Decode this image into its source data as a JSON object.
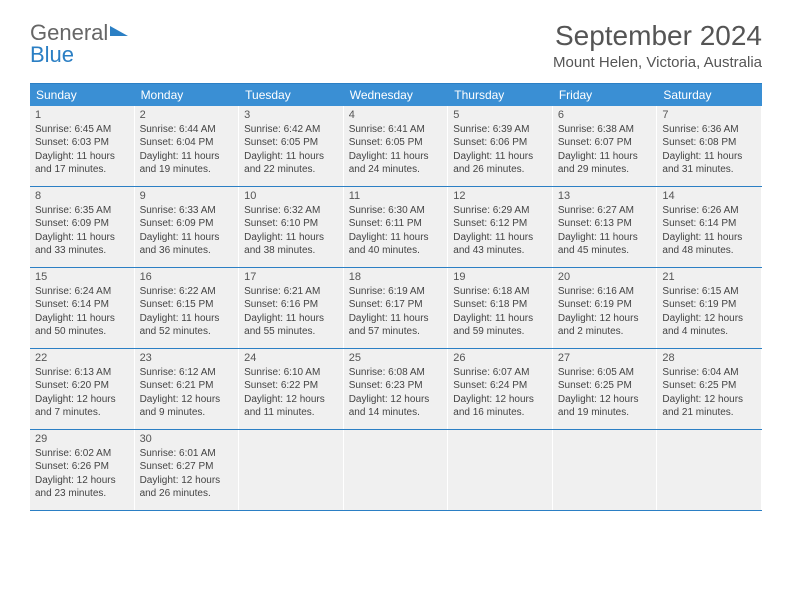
{
  "logo": {
    "general": "General",
    "blue": "Blue"
  },
  "title": "September 2024",
  "location": "Mount Helen, Victoria, Australia",
  "colors": {
    "header_bg": "#3a8fd4",
    "border": "#2b7fc4",
    "cell_bg": "#f0f0f0",
    "text": "#444444",
    "page_bg": "#ffffff"
  },
  "day_names": [
    "Sunday",
    "Monday",
    "Tuesday",
    "Wednesday",
    "Thursday",
    "Friday",
    "Saturday"
  ],
  "weeks": [
    [
      {
        "n": "1",
        "sr": "Sunrise: 6:45 AM",
        "ss": "Sunset: 6:03 PM",
        "d1": "Daylight: 11 hours",
        "d2": "and 17 minutes."
      },
      {
        "n": "2",
        "sr": "Sunrise: 6:44 AM",
        "ss": "Sunset: 6:04 PM",
        "d1": "Daylight: 11 hours",
        "d2": "and 19 minutes."
      },
      {
        "n": "3",
        "sr": "Sunrise: 6:42 AM",
        "ss": "Sunset: 6:05 PM",
        "d1": "Daylight: 11 hours",
        "d2": "and 22 minutes."
      },
      {
        "n": "4",
        "sr": "Sunrise: 6:41 AM",
        "ss": "Sunset: 6:05 PM",
        "d1": "Daylight: 11 hours",
        "d2": "and 24 minutes."
      },
      {
        "n": "5",
        "sr": "Sunrise: 6:39 AM",
        "ss": "Sunset: 6:06 PM",
        "d1": "Daylight: 11 hours",
        "d2": "and 26 minutes."
      },
      {
        "n": "6",
        "sr": "Sunrise: 6:38 AM",
        "ss": "Sunset: 6:07 PM",
        "d1": "Daylight: 11 hours",
        "d2": "and 29 minutes."
      },
      {
        "n": "7",
        "sr": "Sunrise: 6:36 AM",
        "ss": "Sunset: 6:08 PM",
        "d1": "Daylight: 11 hours",
        "d2": "and 31 minutes."
      }
    ],
    [
      {
        "n": "8",
        "sr": "Sunrise: 6:35 AM",
        "ss": "Sunset: 6:09 PM",
        "d1": "Daylight: 11 hours",
        "d2": "and 33 minutes."
      },
      {
        "n": "9",
        "sr": "Sunrise: 6:33 AM",
        "ss": "Sunset: 6:09 PM",
        "d1": "Daylight: 11 hours",
        "d2": "and 36 minutes."
      },
      {
        "n": "10",
        "sr": "Sunrise: 6:32 AM",
        "ss": "Sunset: 6:10 PM",
        "d1": "Daylight: 11 hours",
        "d2": "and 38 minutes."
      },
      {
        "n": "11",
        "sr": "Sunrise: 6:30 AM",
        "ss": "Sunset: 6:11 PM",
        "d1": "Daylight: 11 hours",
        "d2": "and 40 minutes."
      },
      {
        "n": "12",
        "sr": "Sunrise: 6:29 AM",
        "ss": "Sunset: 6:12 PM",
        "d1": "Daylight: 11 hours",
        "d2": "and 43 minutes."
      },
      {
        "n": "13",
        "sr": "Sunrise: 6:27 AM",
        "ss": "Sunset: 6:13 PM",
        "d1": "Daylight: 11 hours",
        "d2": "and 45 minutes."
      },
      {
        "n": "14",
        "sr": "Sunrise: 6:26 AM",
        "ss": "Sunset: 6:14 PM",
        "d1": "Daylight: 11 hours",
        "d2": "and 48 minutes."
      }
    ],
    [
      {
        "n": "15",
        "sr": "Sunrise: 6:24 AM",
        "ss": "Sunset: 6:14 PM",
        "d1": "Daylight: 11 hours",
        "d2": "and 50 minutes."
      },
      {
        "n": "16",
        "sr": "Sunrise: 6:22 AM",
        "ss": "Sunset: 6:15 PM",
        "d1": "Daylight: 11 hours",
        "d2": "and 52 minutes."
      },
      {
        "n": "17",
        "sr": "Sunrise: 6:21 AM",
        "ss": "Sunset: 6:16 PM",
        "d1": "Daylight: 11 hours",
        "d2": "and 55 minutes."
      },
      {
        "n": "18",
        "sr": "Sunrise: 6:19 AM",
        "ss": "Sunset: 6:17 PM",
        "d1": "Daylight: 11 hours",
        "d2": "and 57 minutes."
      },
      {
        "n": "19",
        "sr": "Sunrise: 6:18 AM",
        "ss": "Sunset: 6:18 PM",
        "d1": "Daylight: 11 hours",
        "d2": "and 59 minutes."
      },
      {
        "n": "20",
        "sr": "Sunrise: 6:16 AM",
        "ss": "Sunset: 6:19 PM",
        "d1": "Daylight: 12 hours",
        "d2": "and 2 minutes."
      },
      {
        "n": "21",
        "sr": "Sunrise: 6:15 AM",
        "ss": "Sunset: 6:19 PM",
        "d1": "Daylight: 12 hours",
        "d2": "and 4 minutes."
      }
    ],
    [
      {
        "n": "22",
        "sr": "Sunrise: 6:13 AM",
        "ss": "Sunset: 6:20 PM",
        "d1": "Daylight: 12 hours",
        "d2": "and 7 minutes."
      },
      {
        "n": "23",
        "sr": "Sunrise: 6:12 AM",
        "ss": "Sunset: 6:21 PM",
        "d1": "Daylight: 12 hours",
        "d2": "and 9 minutes."
      },
      {
        "n": "24",
        "sr": "Sunrise: 6:10 AM",
        "ss": "Sunset: 6:22 PM",
        "d1": "Daylight: 12 hours",
        "d2": "and 11 minutes."
      },
      {
        "n": "25",
        "sr": "Sunrise: 6:08 AM",
        "ss": "Sunset: 6:23 PM",
        "d1": "Daylight: 12 hours",
        "d2": "and 14 minutes."
      },
      {
        "n": "26",
        "sr": "Sunrise: 6:07 AM",
        "ss": "Sunset: 6:24 PM",
        "d1": "Daylight: 12 hours",
        "d2": "and 16 minutes."
      },
      {
        "n": "27",
        "sr": "Sunrise: 6:05 AM",
        "ss": "Sunset: 6:25 PM",
        "d1": "Daylight: 12 hours",
        "d2": "and 19 minutes."
      },
      {
        "n": "28",
        "sr": "Sunrise: 6:04 AM",
        "ss": "Sunset: 6:25 PM",
        "d1": "Daylight: 12 hours",
        "d2": "and 21 minutes."
      }
    ],
    [
      {
        "n": "29",
        "sr": "Sunrise: 6:02 AM",
        "ss": "Sunset: 6:26 PM",
        "d1": "Daylight: 12 hours",
        "d2": "and 23 minutes."
      },
      {
        "n": "30",
        "sr": "Sunrise: 6:01 AM",
        "ss": "Sunset: 6:27 PM",
        "d1": "Daylight: 12 hours",
        "d2": "and 26 minutes."
      },
      {
        "empty": true
      },
      {
        "empty": true
      },
      {
        "empty": true
      },
      {
        "empty": true
      },
      {
        "empty": true
      }
    ]
  ]
}
